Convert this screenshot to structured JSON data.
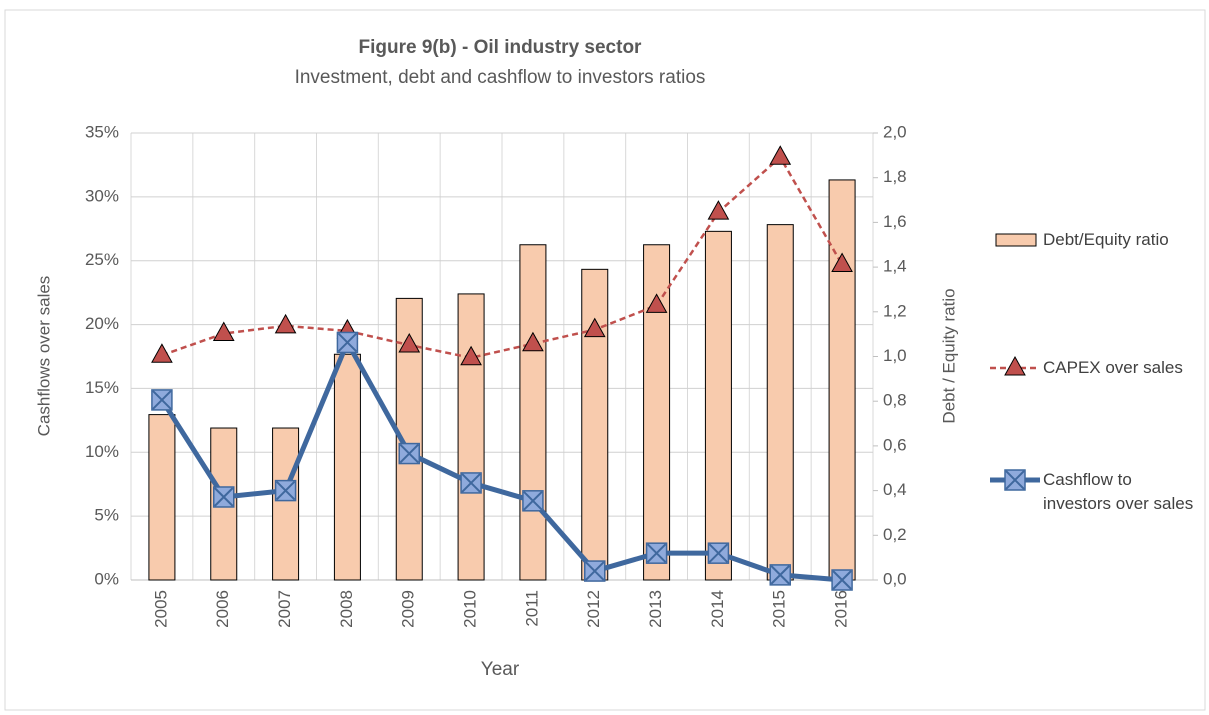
{
  "chart_data": {
    "type": "bar-line",
    "title": "Figure 9(b) - Oil industry sector",
    "subtitle": "Investment, debt and cashflow to investors ratios",
    "x_label": "Year",
    "y_label": "Cashflows over sales",
    "y2_label": "Debt / Equity ratio",
    "categories": [
      "2005",
      "2006",
      "2007",
      "2008",
      "2009",
      "2010",
      "2011",
      "2012",
      "2013",
      "2014",
      "2015",
      "2016"
    ],
    "ylim": [
      0,
      35
    ],
    "yticks": [
      {
        "value": 0,
        "label": "0%"
      },
      {
        "value": 5,
        "label": "5%"
      },
      {
        "value": 10,
        "label": "10%"
      },
      {
        "value": 15,
        "label": "15%"
      },
      {
        "value": 20,
        "label": "20%"
      },
      {
        "value": 25,
        "label": "25%"
      },
      {
        "value": 30,
        "label": "30%"
      },
      {
        "value": 35,
        "label": "35%"
      }
    ],
    "y2lim": [
      0,
      2
    ],
    "y2ticks": [
      {
        "value": 0,
        "label": "0,0"
      },
      {
        "value": 0.2,
        "label": "0,2"
      },
      {
        "value": 0.4,
        "label": "0,4"
      },
      {
        "value": 0.6,
        "label": "0,6"
      },
      {
        "value": 0.8,
        "label": "0,8"
      },
      {
        "value": 1,
        "label": "1,0"
      },
      {
        "value": 1.2,
        "label": "1,2"
      },
      {
        "value": 1.4,
        "label": "1,4"
      },
      {
        "value": 1.6,
        "label": "1,6"
      },
      {
        "value": 1.8,
        "label": "1,8"
      },
      {
        "value": 2,
        "label": "2,0"
      }
    ],
    "grid": true,
    "series": [
      {
        "name": "Debt/Equity ratio",
        "type": "bar",
        "axis": "y2",
        "color": "#f8cbad",
        "values": [
          0.74,
          0.68,
          0.68,
          1.01,
          1.26,
          1.28,
          1.5,
          1.39,
          1.5,
          1.56,
          1.59,
          1.79
        ]
      },
      {
        "name": "CAPEX over sales",
        "type": "line",
        "color": "#c0504d",
        "values": [
          17.6,
          19.3,
          19.9,
          19.5,
          18.4,
          17.4,
          18.5,
          19.6,
          21.5,
          28.8,
          33.1,
          24.7
        ]
      },
      {
        "name": "Cashflow to investors over sales",
        "type": "line",
        "color": "#3f689e",
        "values": [
          14.1,
          6.5,
          7.0,
          18.6,
          9.9,
          7.6,
          6.2,
          0.7,
          2.1,
          2.1,
          0.4,
          0
        ]
      }
    ]
  }
}
